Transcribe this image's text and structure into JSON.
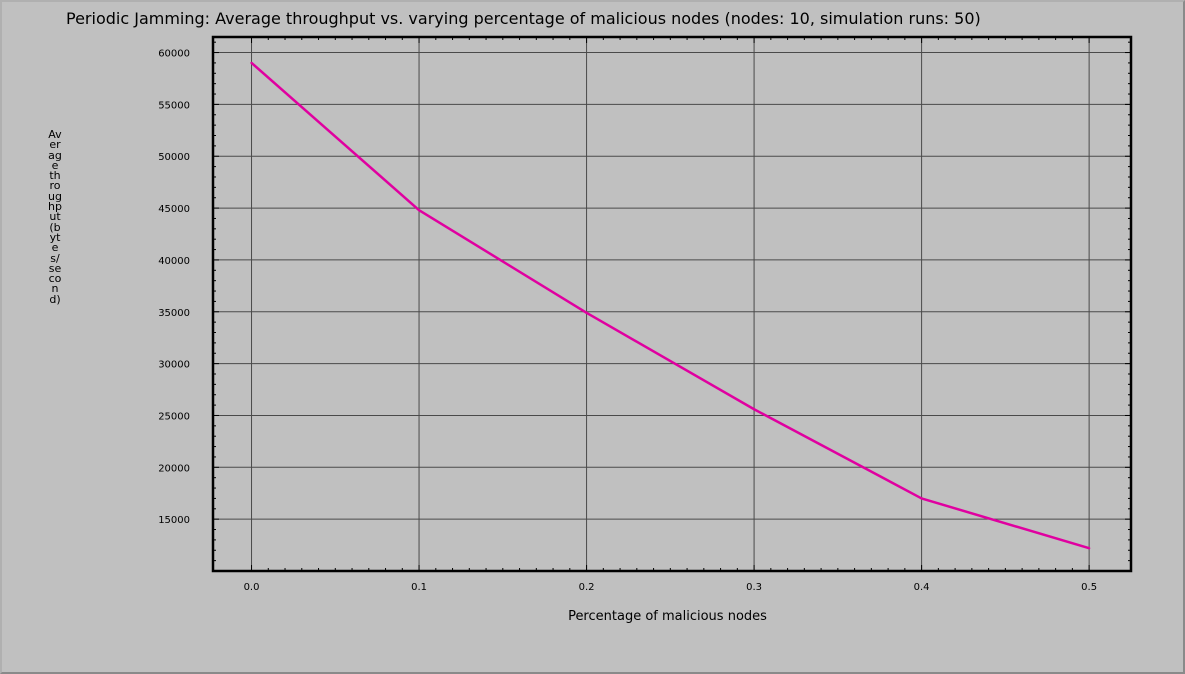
{
  "chart_data": {
    "type": "line",
    "title": "Periodic Jamming: Average throughput vs. varying percentage of malicious nodes (nodes: 10, simulation runs: 50)",
    "xlabel": "Percentage of malicious nodes",
    "ylabel": "Average throughput (bytes/second)",
    "x": [
      0.0,
      0.1,
      0.2,
      0.3,
      0.4,
      0.5
    ],
    "x_ticks": [
      "0.0",
      "0.1",
      "0.2",
      "0.3",
      "0.4",
      "0.5"
    ],
    "y_ticks": [
      "60000",
      "55000",
      "50000",
      "45000",
      "40000",
      "35000",
      "30000",
      "25000",
      "20000",
      "15000"
    ],
    "xlim": [
      -0.023,
      0.525
    ],
    "ylim": [
      10000,
      61500
    ],
    "grid": true,
    "series": [
      {
        "color": "#e000a0",
        "values": [
          59000,
          44800,
          34900,
          25600,
          17000,
          12200
        ]
      }
    ]
  }
}
